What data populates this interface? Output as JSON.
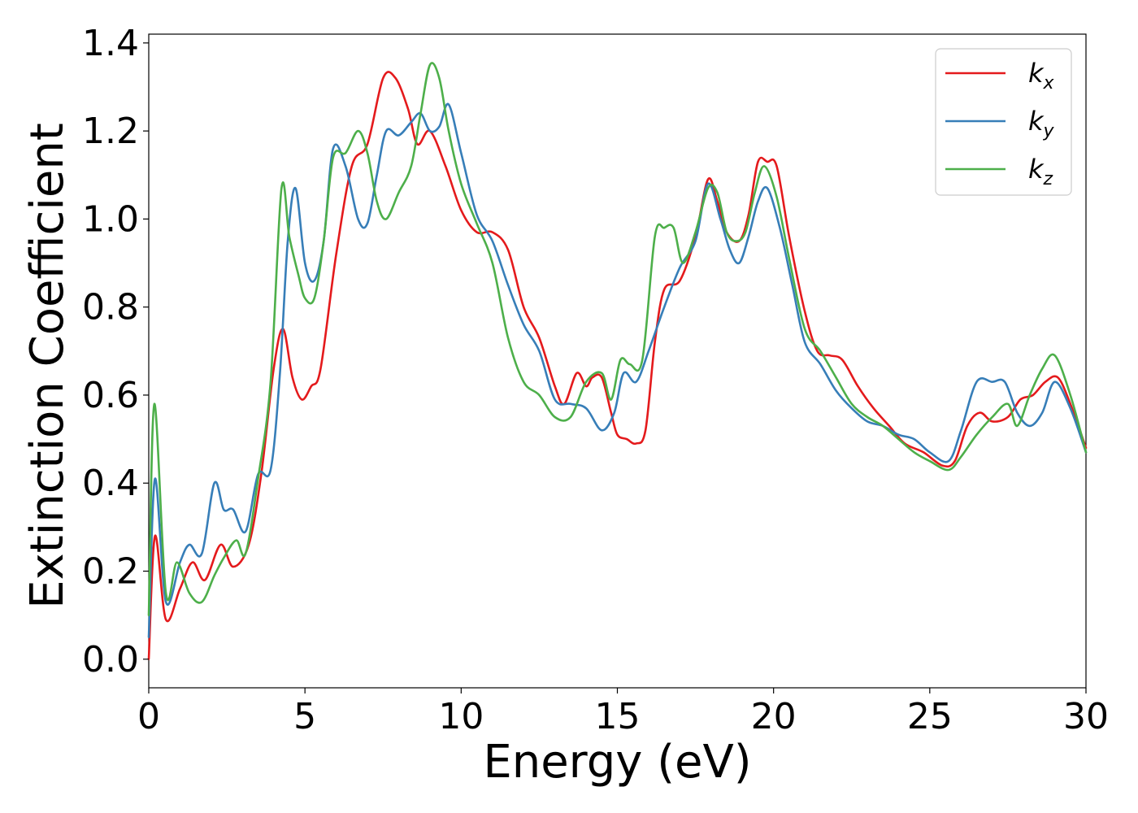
{
  "chart_data": {
    "type": "line",
    "title": "",
    "xlabel": "Energy (eV)",
    "ylabel": "Extinction Coefficient",
    "xlim": [
      0,
      30
    ],
    "ylim": [
      -0.065,
      1.42
    ],
    "xticks": [
      0,
      5,
      10,
      15,
      20,
      25,
      30
    ],
    "xtick_labels": [
      "0",
      "5",
      "10",
      "15",
      "20",
      "25",
      "30"
    ],
    "yticks": [
      0.0,
      0.2,
      0.4,
      0.6,
      0.8,
      1.0,
      1.2,
      1.4
    ],
    "ytick_labels": [
      "0.0",
      "0.2",
      "0.4",
      "0.6",
      "0.8",
      "1.0",
      "1.2",
      "1.4"
    ],
    "grid": false,
    "legend_position": "top-right",
    "series": [
      {
        "name": "kx",
        "legend": {
          "base": "k",
          "sub": "x"
        },
        "color": "#e41a1c",
        "x": [
          0,
          0.2,
          0.55,
          1.0,
          1.4,
          1.8,
          2.3,
          2.7,
          3.2,
          3.6,
          4.0,
          4.3,
          4.6,
          4.9,
          5.2,
          5.5,
          6.0,
          6.5,
          7.0,
          7.5,
          7.9,
          8.3,
          8.6,
          9.0,
          9.5,
          10.0,
          10.5,
          11.0,
          11.5,
          12.0,
          12.5,
          13.0,
          13.3,
          13.7,
          14.0,
          14.2,
          14.5,
          14.8,
          15.0,
          15.3,
          15.6,
          15.9,
          16.2,
          16.5,
          17.0,
          17.5,
          17.9,
          18.2,
          18.5,
          18.9,
          19.2,
          19.5,
          19.8,
          20.1,
          20.5,
          21.0,
          21.4,
          21.8,
          22.2,
          22.7,
          23.2,
          23.7,
          24.2,
          24.8,
          25.4,
          25.8,
          26.2,
          26.6,
          27.0,
          27.5,
          27.9,
          28.3,
          28.7,
          29.1,
          29.5,
          30.0
        ],
        "y": [
          0.0,
          0.28,
          0.09,
          0.16,
          0.22,
          0.18,
          0.26,
          0.21,
          0.26,
          0.42,
          0.66,
          0.75,
          0.64,
          0.59,
          0.62,
          0.66,
          0.92,
          1.12,
          1.17,
          1.32,
          1.32,
          1.25,
          1.17,
          1.2,
          1.12,
          1.02,
          0.97,
          0.97,
          0.93,
          0.8,
          0.73,
          0.62,
          0.58,
          0.65,
          0.62,
          0.64,
          0.64,
          0.56,
          0.51,
          0.5,
          0.49,
          0.52,
          0.72,
          0.84,
          0.86,
          0.96,
          1.09,
          1.04,
          0.97,
          0.95,
          1.01,
          1.13,
          1.13,
          1.12,
          0.96,
          0.79,
          0.7,
          0.69,
          0.68,
          0.62,
          0.57,
          0.53,
          0.49,
          0.47,
          0.44,
          0.45,
          0.53,
          0.56,
          0.54,
          0.55,
          0.59,
          0.6,
          0.63,
          0.64,
          0.58,
          0.48
        ]
      },
      {
        "name": "ky",
        "legend": {
          "base": "k",
          "sub": "y"
        },
        "color": "#377eb8",
        "x": [
          0,
          0.2,
          0.55,
          1.0,
          1.3,
          1.7,
          2.1,
          2.4,
          2.7,
          3.1,
          3.5,
          3.9,
          4.2,
          4.45,
          4.7,
          5.0,
          5.3,
          5.6,
          5.9,
          6.3,
          6.7,
          7.0,
          7.3,
          7.6,
          8.0,
          8.4,
          8.7,
          9.0,
          9.3,
          9.6,
          10.0,
          10.5,
          11.0,
          11.5,
          12.0,
          12.5,
          13.0,
          13.5,
          14.0,
          14.5,
          14.9,
          15.2,
          15.6,
          16.0,
          16.5,
          17.0,
          17.5,
          17.9,
          18.3,
          18.6,
          18.9,
          19.2,
          19.5,
          19.8,
          20.2,
          20.6,
          21.0,
          21.5,
          22.0,
          22.5,
          23.0,
          23.5,
          24.0,
          24.5,
          25.0,
          25.6,
          26.0,
          26.5,
          27.0,
          27.4,
          27.8,
          28.2,
          28.6,
          29.0,
          29.5,
          30.0
        ],
        "y": [
          0.05,
          0.41,
          0.13,
          0.22,
          0.26,
          0.24,
          0.4,
          0.34,
          0.34,
          0.29,
          0.42,
          0.43,
          0.65,
          0.95,
          1.07,
          0.9,
          0.86,
          0.95,
          1.16,
          1.12,
          1.0,
          0.99,
          1.1,
          1.2,
          1.19,
          1.22,
          1.24,
          1.2,
          1.21,
          1.26,
          1.15,
          1.01,
          0.95,
          0.85,
          0.76,
          0.7,
          0.59,
          0.58,
          0.57,
          0.52,
          0.56,
          0.65,
          0.63,
          0.7,
          0.8,
          0.89,
          0.95,
          1.08,
          1.0,
          0.93,
          0.9,
          0.96,
          1.04,
          1.07,
          0.98,
          0.85,
          0.72,
          0.67,
          0.61,
          0.57,
          0.54,
          0.53,
          0.51,
          0.5,
          0.47,
          0.45,
          0.52,
          0.63,
          0.63,
          0.63,
          0.56,
          0.53,
          0.56,
          0.63,
          0.57,
          0.47
        ]
      },
      {
        "name": "kz",
        "legend": {
          "base": "k",
          "sub": "z"
        },
        "color": "#4daf4a",
        "x": [
          0,
          0.18,
          0.55,
          0.9,
          1.3,
          1.7,
          2.1,
          2.4,
          2.8,
          3.1,
          3.5,
          3.9,
          4.25,
          4.5,
          4.8,
          5.0,
          5.3,
          5.6,
          5.9,
          6.3,
          6.7,
          7.0,
          7.3,
          7.6,
          8.0,
          8.4,
          8.7,
          9.0,
          9.3,
          9.6,
          10.0,
          10.5,
          11.0,
          11.5,
          12.0,
          12.5,
          13.0,
          13.5,
          14.0,
          14.5,
          14.8,
          15.1,
          15.4,
          15.8,
          16.2,
          16.5,
          16.8,
          17.1,
          17.5,
          17.9,
          18.2,
          18.5,
          18.8,
          19.1,
          19.4,
          19.7,
          20.1,
          20.5,
          21.0,
          21.5,
          22.0,
          22.5,
          23.0,
          23.5,
          24.0,
          24.5,
          25.0,
          25.6,
          26.0,
          26.5,
          27.0,
          27.5,
          27.8,
          28.2,
          28.6,
          29.0,
          29.5,
          30.0
        ],
        "y": [
          0.1,
          0.58,
          0.15,
          0.22,
          0.15,
          0.13,
          0.19,
          0.23,
          0.27,
          0.24,
          0.41,
          0.63,
          1.07,
          0.96,
          0.87,
          0.82,
          0.82,
          0.95,
          1.14,
          1.15,
          1.2,
          1.15,
          1.04,
          1.0,
          1.06,
          1.12,
          1.24,
          1.35,
          1.32,
          1.2,
          1.08,
          0.99,
          0.9,
          0.73,
          0.63,
          0.6,
          0.55,
          0.55,
          0.63,
          0.65,
          0.59,
          0.68,
          0.67,
          0.68,
          0.96,
          0.98,
          0.98,
          0.9,
          0.97,
          1.07,
          1.06,
          0.97,
          0.95,
          0.97,
          1.06,
          1.12,
          1.05,
          0.91,
          0.75,
          0.7,
          0.64,
          0.58,
          0.55,
          0.53,
          0.5,
          0.47,
          0.45,
          0.43,
          0.46,
          0.51,
          0.55,
          0.58,
          0.53,
          0.6,
          0.66,
          0.69,
          0.6,
          0.47
        ]
      }
    ]
  }
}
